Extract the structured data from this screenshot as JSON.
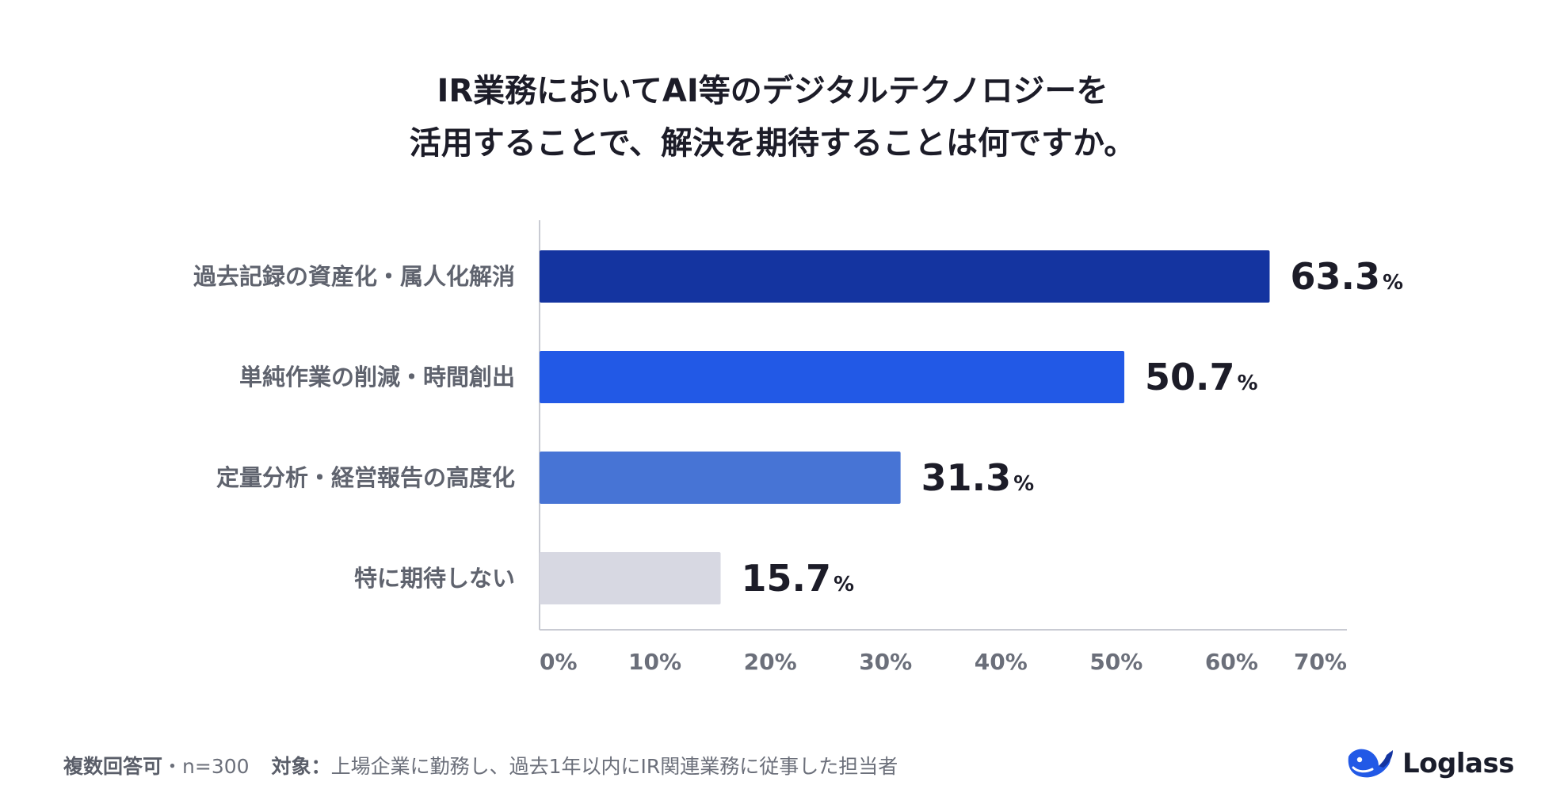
{
  "title": {
    "line1": "IR業務においてAI等のデジタルテクノロジーを",
    "line2": "活用することで、解決を期待することは何ですか。"
  },
  "chart_data": {
    "type": "bar",
    "orientation": "horizontal",
    "categories": [
      "過去記録の資産化・属人化解消",
      "単純作業の削減・時間創出",
      "定量分析・経営報告の高度化",
      "特に期待しない"
    ],
    "values": [
      63.3,
      50.7,
      31.3,
      15.7
    ],
    "value_unit": "%",
    "bar_colors": [
      "#1434a0",
      "#2259e6",
      "#4774d5",
      "#d7d8e2"
    ],
    "xlim": [
      0,
      70
    ],
    "xticks": [
      "0%",
      "10%",
      "20%",
      "30%",
      "40%",
      "50%",
      "60%",
      "70%"
    ],
    "grid": false,
    "legend": "none"
  },
  "footer": {
    "sample_label": "複数回答可",
    "sample_separator": "・",
    "sample_size": "n=300",
    "target_label": "対象：",
    "target_text": "上場企業に勤務し、過去1年以内にIR関連業務に従事した担当者"
  },
  "brand": {
    "name": "Loglass",
    "icon": "whale-logo-icon",
    "color": "#2259e6"
  }
}
